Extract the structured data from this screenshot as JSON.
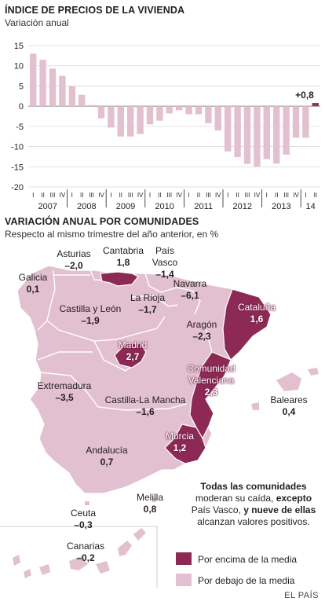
{
  "chart_data": [
    {
      "type": "bar",
      "title": "ÍNDICE DE PRECIOS DE LA VIVIENDA",
      "subtitle": "Variación anual",
      "ylim": [
        -20,
        15
      ],
      "yticks": [
        "15",
        "10",
        "5",
        "0",
        "-5",
        "-10",
        "-15",
        "-20"
      ],
      "yticks_values": [
        15,
        10,
        5,
        0,
        -5,
        -10,
        -15,
        -20
      ],
      "quarter_labels": [
        "I",
        "II",
        "III",
        "IV",
        "I",
        "II",
        "III",
        "IV",
        "I",
        "II",
        "III",
        "IV",
        "I",
        "II",
        "III",
        "IV",
        "I",
        "II",
        "III",
        "IV",
        "I",
        "II",
        "III",
        "IV",
        "I",
        "II",
        "III",
        "IV",
        "I",
        "II"
      ],
      "year_labels": [
        "2007",
        "2008",
        "2009",
        "2010",
        "2011",
        "2012",
        "2013",
        "14"
      ],
      "values": [
        13.0,
        11.5,
        9.3,
        7.5,
        4.9,
        2.8,
        0.3,
        -3.0,
        -5.3,
        -7.5,
        -7.5,
        -6.9,
        -4.5,
        -3.6,
        -1.8,
        -1.0,
        -2.0,
        -2.0,
        -4.2,
        -6.0,
        -11.2,
        -12.6,
        -14.3,
        -15.0,
        -13.1,
        -14.2,
        -12.0,
        -7.8,
        -7.8,
        0.8
      ],
      "annotation": "+0,8",
      "grid": true,
      "colors": {
        "negative_or_past": "#e3c0cf",
        "latest": "#9b2f5d"
      }
    },
    {
      "type": "map",
      "title": "VARIACIÓN ANUAL POR COMUNIDADES",
      "subtitle": "Respecto al mismo trimestre del año anterior, en %",
      "regions": [
        {
          "name": "Galicia",
          "value": "0,1",
          "above_mean": false
        },
        {
          "name": "Asturias",
          "value": "–2,0",
          "above_mean": false
        },
        {
          "name": "Cantabria",
          "value": "1,8",
          "above_mean": true
        },
        {
          "name": "País Vasco",
          "value": "–1,4",
          "above_mean": false
        },
        {
          "name": "Navarra",
          "value": "–6,1",
          "above_mean": false
        },
        {
          "name": "Castilla y León",
          "value": "–1,9",
          "above_mean": false
        },
        {
          "name": "La Rioja",
          "value": "–1,7",
          "above_mean": false
        },
        {
          "name": "Cataluña",
          "value": "1,6",
          "above_mean": true
        },
        {
          "name": "Aragón",
          "value": "–2,3",
          "above_mean": false
        },
        {
          "name": "Madrid",
          "value": "2,7",
          "above_mean": true
        },
        {
          "name": "Comunidad Valenciana",
          "value": "2,3",
          "above_mean": true
        },
        {
          "name": "Extremadura",
          "value": "–3,5",
          "above_mean": false
        },
        {
          "name": "Castilla-La Mancha",
          "value": "–1,6",
          "above_mean": false
        },
        {
          "name": "Baleares",
          "value": "0,4",
          "above_mean": false
        },
        {
          "name": "Murcia",
          "value": "1,2",
          "above_mean": true
        },
        {
          "name": "Andalucía",
          "value": "0,7",
          "above_mean": false
        },
        {
          "name": "Melilla",
          "value": "0,8",
          "above_mean": false
        },
        {
          "name": "Ceuta",
          "value": "–0,3",
          "above_mean": false
        },
        {
          "name": "Canarias",
          "value": "–0,2",
          "above_mean": false
        }
      ]
    }
  ],
  "labels": {
    "galicia": "Galicia",
    "galicia_v": "0,1",
    "asturias": "Asturias",
    "asturias_v": "–2,0",
    "cantabria": "Cantabria",
    "cantabria_v": "1,8",
    "pais_vasco_1": "País",
    "pais_vasco_2": "Vasco",
    "pais_vasco_v": "–1,4",
    "navarra": "Navarra",
    "navarra_v": "–6,1",
    "cyl": "Castilla y León",
    "cyl_v": "–1,9",
    "rioja": "La Rioja",
    "rioja_v": "–1,7",
    "cataluna": "Cataluña",
    "cataluna_v": "1,6",
    "aragon": "Aragón",
    "aragon_v": "–2,3",
    "madrid": "Madrid",
    "madrid_v": "2,7",
    "valencia_1": "Comunidad",
    "valencia_2": "Valenciana",
    "valencia_v": "2,3",
    "extremadura": "Extremadura",
    "extremadura_v": "–3,5",
    "clm": "Castilla-La Mancha",
    "clm_v": "–1,6",
    "baleares": "Baleares",
    "baleares_v": "0,4",
    "murcia": "Murcia",
    "murcia_v": "1,2",
    "andalucia": "Andalucía",
    "andalucia_v": "0,7",
    "melilla": "Melilla",
    "melilla_v": "0,8",
    "ceuta": "Ceuta",
    "ceuta_v": "–0,3",
    "canarias": "Canarias",
    "canarias_v": "–0,2"
  },
  "note": {
    "b1": "Todas las comunidades",
    "t1": "moderan su caída, ",
    "b2": "excepto",
    "t2": "País Vasco, ",
    "b3": "y nueve de ellas",
    "t3": "alcanzan valores positivos."
  },
  "legend": {
    "above": "Por encima de la media",
    "below": "Por debajo de la media",
    "above_color": "#8c2a55",
    "below_color": "#e3c0cf"
  },
  "source": "EL PAÍS"
}
